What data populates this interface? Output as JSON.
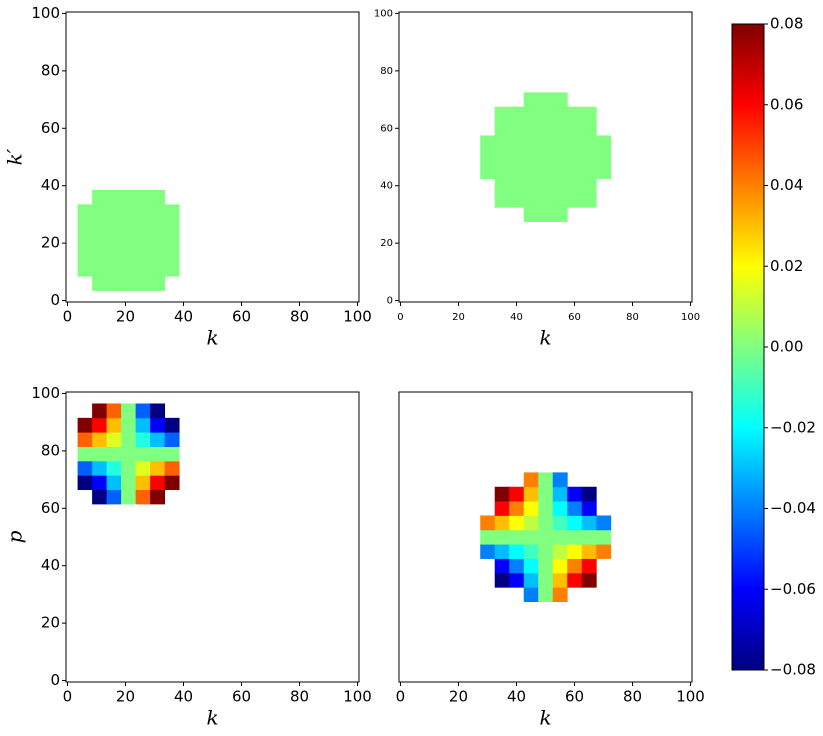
{
  "chart_data": [
    {
      "type": "heatmap",
      "xlabel": "k",
      "ylabel": "k′",
      "x": [
        6,
        11,
        16,
        21,
        26,
        31,
        36
      ],
      "y": [
        6,
        11,
        16,
        21,
        26,
        31,
        36
      ],
      "values": [
        [
          null,
          0,
          0,
          0,
          0,
          0,
          null
        ],
        [
          0,
          0,
          0,
          0,
          0,
          0,
          0
        ],
        [
          0,
          0,
          0,
          0,
          0,
          0,
          0
        ],
        [
          0,
          0,
          0,
          0,
          0,
          0,
          0
        ],
        [
          0,
          0,
          0,
          0,
          0,
          0,
          0
        ],
        [
          0,
          0,
          0,
          0,
          0,
          0,
          0
        ],
        [
          null,
          0,
          0,
          0,
          0,
          0,
          null
        ]
      ],
      "xlim": [
        -0.5,
        100.5
      ],
      "ylim": [
        -0.5,
        100.5
      ],
      "xticks": [
        0,
        20,
        40,
        60,
        80,
        100
      ],
      "yticks": [
        0,
        20,
        40,
        60,
        80,
        100
      ]
    },
    {
      "type": "heatmap",
      "xlabel": "k",
      "x": [
        30,
        35,
        40,
        45,
        50,
        55,
        60,
        65,
        70
      ],
      "y": [
        30,
        35,
        40,
        45,
        50,
        55,
        60,
        65,
        70
      ],
      "values": [
        [
          null,
          null,
          null,
          0,
          0,
          0,
          null,
          null,
          null
        ],
        [
          null,
          0,
          0,
          0,
          0,
          0,
          0,
          0,
          null
        ],
        [
          null,
          0,
          0,
          0,
          0,
          0,
          0,
          0,
          null
        ],
        [
          0,
          0,
          0,
          0,
          0,
          0,
          0,
          0,
          0
        ],
        [
          0,
          0,
          0,
          0,
          0,
          0,
          0,
          0,
          0
        ],
        [
          0,
          0,
          0,
          0,
          0,
          0,
          0,
          0,
          0
        ],
        [
          null,
          0,
          0,
          0,
          0,
          0,
          0,
          0,
          null
        ],
        [
          null,
          0,
          0,
          0,
          0,
          0,
          0,
          0,
          null
        ],
        [
          null,
          null,
          null,
          0,
          0,
          0,
          null,
          null,
          null
        ]
      ],
      "xlim": [
        -0.5,
        100.5
      ],
      "ylim": [
        -0.5,
        100.5
      ],
      "xticks": [
        0,
        20,
        40,
        60,
        80,
        100
      ],
      "yticks": [
        0,
        20,
        40,
        60,
        80,
        100
      ]
    },
    {
      "type": "heatmap",
      "xlabel": "k",
      "ylabel": "p",
      "x": [
        6,
        11,
        16,
        21,
        26,
        31,
        36
      ],
      "y": [
        64,
        69,
        74,
        79,
        84,
        89,
        94
      ],
      "values": [
        [
          null,
          -0.08,
          -0.045,
          0,
          0.045,
          0.08,
          null
        ],
        [
          -0.08,
          -0.06,
          -0.03,
          0,
          0.03,
          0.06,
          0.08
        ],
        [
          -0.045,
          -0.03,
          -0.015,
          0,
          0.015,
          0.03,
          0.045
        ],
        [
          0,
          0,
          0,
          0,
          0,
          0,
          0
        ],
        [
          0.045,
          0.03,
          0.015,
          0,
          -0.015,
          -0.03,
          -0.045
        ],
        [
          0.08,
          0.06,
          0.03,
          0,
          -0.03,
          -0.06,
          -0.08
        ],
        [
          null,
          0.08,
          0.045,
          0,
          -0.045,
          -0.08,
          null
        ]
      ],
      "xlim": [
        -0.5,
        100.5
      ],
      "ylim": [
        -0.5,
        100.5
      ],
      "xticks": [
        0,
        20,
        40,
        60,
        80,
        100
      ],
      "yticks": [
        0,
        20,
        40,
        60,
        80,
        100
      ]
    },
    {
      "type": "heatmap",
      "xlabel": "k",
      "x": [
        30,
        35,
        40,
        45,
        50,
        55,
        60,
        65,
        70
      ],
      "y": [
        30,
        35,
        40,
        45,
        50,
        55,
        60,
        65,
        70
      ],
      "values": [
        [
          null,
          null,
          null,
          -0.04,
          0,
          0.04,
          null,
          null,
          null
        ],
        [
          null,
          -0.08,
          -0.06,
          -0.03,
          0,
          0.03,
          0.06,
          0.08,
          null
        ],
        [
          null,
          -0.06,
          -0.04,
          -0.02,
          0,
          0.02,
          0.04,
          0.06,
          null
        ],
        [
          -0.04,
          -0.03,
          -0.02,
          -0.01,
          0,
          0.01,
          0.02,
          0.03,
          0.04
        ],
        [
          0,
          0,
          0,
          0,
          0,
          0,
          0,
          0,
          0
        ],
        [
          0.04,
          0.03,
          0.02,
          0.01,
          0,
          -0.01,
          -0.02,
          -0.03,
          -0.04
        ],
        [
          null,
          0.06,
          0.04,
          0.02,
          0,
          -0.02,
          -0.04,
          -0.06,
          null
        ],
        [
          null,
          0.08,
          0.06,
          0.03,
          0,
          -0.03,
          -0.06,
          -0.08,
          null
        ],
        [
          null,
          null,
          null,
          0.04,
          0,
          -0.04,
          null,
          null,
          null
        ]
      ],
      "xlim": [
        -0.5,
        100.5
      ],
      "ylim": [
        -0.5,
        100.5
      ],
      "xticks": [
        0,
        20,
        40,
        60,
        80,
        100
      ]
    }
  ],
  "colorbar": {
    "colormap": "jet",
    "clim": [
      -0.08,
      0.08
    ],
    "ticks": [
      {
        "value": -0.08,
        "label": "−0.08"
      },
      {
        "value": -0.06,
        "label": "−0.06"
      },
      {
        "value": -0.04,
        "label": "−0.04"
      },
      {
        "value": -0.02,
        "label": "−0.02"
      },
      {
        "value": 0,
        "label": "0.00"
      },
      0.02,
      0.04,
      0.06,
      0.08
    ]
  }
}
